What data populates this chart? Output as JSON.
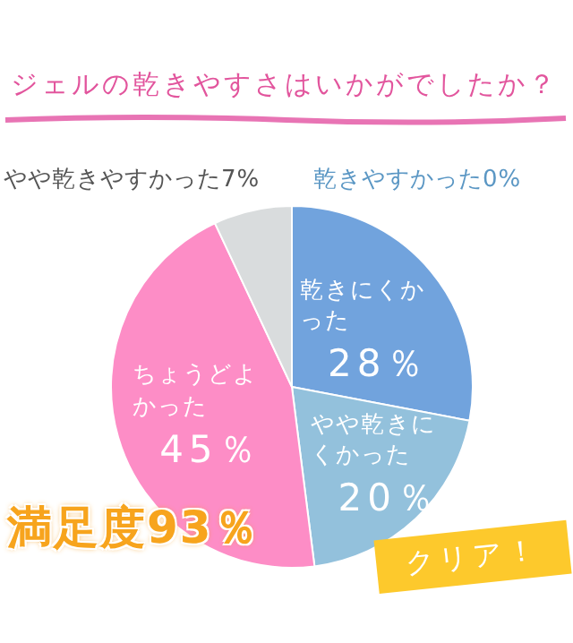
{
  "chart_data": {
    "type": "pie",
    "title": "ジェルの乾きやすさはいかがでしたか？",
    "categories": [
      "乾きにくかった",
      "やや乾きにくかった",
      "ちょうどよかった",
      "やや乾きやすかった",
      "乾きやすかった"
    ],
    "values": [
      28,
      20,
      45,
      7,
      0
    ],
    "value_labels": [
      "28％",
      "20％",
      "45％",
      "7%",
      "0%"
    ],
    "colors": [
      "#71a3dd",
      "#93c1dc",
      "#fd8dc6",
      "#d9dcdd",
      "#5b97c4"
    ],
    "annotations": [
      "満足度93％",
      "クリア！"
    ]
  }
}
